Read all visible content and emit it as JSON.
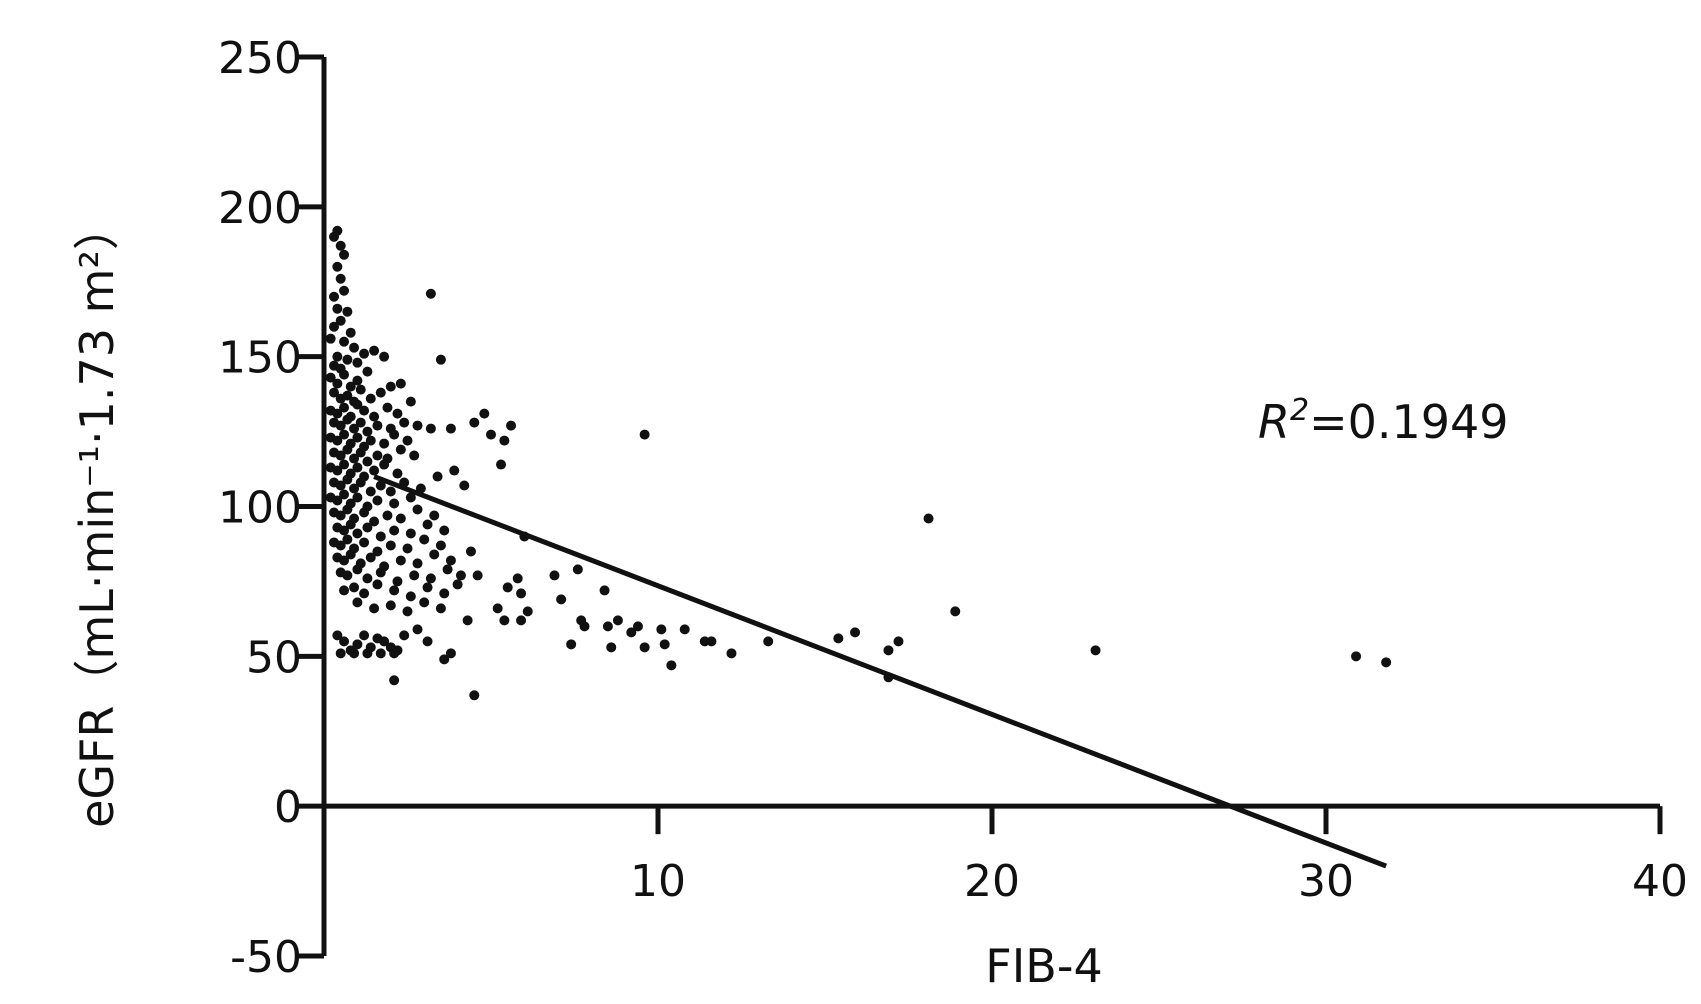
{
  "chart_data": {
    "type": "scatter",
    "title": "",
    "xlabel": "FIB-4",
    "ylabel": "eGFR（mL·min⁻¹·1.73 m²）",
    "xlim": [
      0,
      40
    ],
    "ylim": [
      -50,
      250
    ],
    "xticks": [
      "10",
      "20",
      "30",
      "40"
    ],
    "yticks": [
      "-50",
      "0",
      "50",
      "100",
      "150",
      "200",
      "250"
    ],
    "annotation": {
      "r2_symbol": "R",
      "r2_power": "2",
      "r2_value": "=0.1949"
    },
    "regression": {
      "x": [
        1.5,
        31.8
      ],
      "y": [
        110,
        -20
      ]
    },
    "point_color": "#111111",
    "grid": false,
    "legend": "none",
    "series": [
      {
        "points": [
          [
            0.3,
            190
          ],
          [
            0.4,
            192
          ],
          [
            0.5,
            187
          ],
          [
            0.6,
            184
          ],
          [
            0.4,
            180
          ],
          [
            0.5,
            176
          ],
          [
            0.3,
            170
          ],
          [
            0.6,
            172
          ],
          [
            0.7,
            165
          ],
          [
            0.4,
            166
          ],
          [
            0.3,
            160
          ],
          [
            0.5,
            162
          ],
          [
            0.8,
            158
          ],
          [
            0.2,
            156
          ],
          [
            0.6,
            155
          ],
          [
            0.9,
            153
          ],
          [
            0.4,
            150
          ],
          [
            0.7,
            149
          ],
          [
            0.3,
            147
          ],
          [
            0.5,
            146
          ],
          [
            1.0,
            148
          ],
          [
            1.2,
            151
          ],
          [
            1.5,
            152
          ],
          [
            1.8,
            150
          ],
          [
            0.2,
            143
          ],
          [
            0.4,
            141
          ],
          [
            0.6,
            144
          ],
          [
            0.8,
            140
          ],
          [
            1.0,
            142
          ],
          [
            1.3,
            145
          ],
          [
            0.3,
            138
          ],
          [
            0.5,
            136
          ],
          [
            0.7,
            137
          ],
          [
            0.9,
            135
          ],
          [
            1.1,
            139
          ],
          [
            1.4,
            136
          ],
          [
            1.7,
            138
          ],
          [
            2.0,
            140
          ],
          [
            2.3,
            141
          ],
          [
            0.2,
            132
          ],
          [
            0.4,
            131
          ],
          [
            0.6,
            133
          ],
          [
            0.8,
            130
          ],
          [
            1.0,
            134
          ],
          [
            1.2,
            132
          ],
          [
            1.5,
            130
          ],
          [
            1.9,
            133
          ],
          [
            2.2,
            131
          ],
          [
            2.6,
            135
          ],
          [
            0.3,
            128
          ],
          [
            0.5,
            127
          ],
          [
            0.7,
            129
          ],
          [
            0.9,
            126
          ],
          [
            1.1,
            128
          ],
          [
            1.3,
            125
          ],
          [
            1.6,
            127
          ],
          [
            2.0,
            126
          ],
          [
            2.4,
            128
          ],
          [
            2.8,
            127
          ],
          [
            3.2,
            126
          ],
          [
            0.2,
            123
          ],
          [
            0.4,
            122
          ],
          [
            0.6,
            124
          ],
          [
            0.8,
            121
          ],
          [
            1.0,
            123
          ],
          [
            1.2,
            120
          ],
          [
            1.4,
            122
          ],
          [
            1.8,
            121
          ],
          [
            2.1,
            124
          ],
          [
            2.5,
            122
          ],
          [
            0.3,
            118
          ],
          [
            0.5,
            117
          ],
          [
            0.7,
            119
          ],
          [
            0.9,
            116
          ],
          [
            1.1,
            118
          ],
          [
            1.3,
            115
          ],
          [
            1.6,
            117
          ],
          [
            1.9,
            116
          ],
          [
            2.3,
            119
          ],
          [
            2.7,
            117
          ],
          [
            0.2,
            113
          ],
          [
            0.4,
            112
          ],
          [
            0.6,
            114
          ],
          [
            0.8,
            111
          ],
          [
            1.0,
            113
          ],
          [
            1.2,
            110
          ],
          [
            1.5,
            112
          ],
          [
            1.8,
            114
          ],
          [
            2.2,
            111
          ],
          [
            0.3,
            108
          ],
          [
            0.5,
            107
          ],
          [
            0.7,
            109
          ],
          [
            0.9,
            106
          ],
          [
            1.1,
            108
          ],
          [
            1.4,
            105
          ],
          [
            1.7,
            107
          ],
          [
            2.0,
            105
          ],
          [
            2.4,
            108
          ],
          [
            2.9,
            106
          ],
          [
            3.4,
            110
          ],
          [
            0.2,
            103
          ],
          [
            0.4,
            102
          ],
          [
            0.6,
            104
          ],
          [
            0.8,
            101
          ],
          [
            1.0,
            103
          ],
          [
            1.3,
            100
          ],
          [
            1.6,
            102
          ],
          [
            2.1,
            101
          ],
          [
            2.6,
            103
          ],
          [
            0.3,
            98
          ],
          [
            0.5,
            97
          ],
          [
            0.7,
            99
          ],
          [
            0.9,
            96
          ],
          [
            1.2,
            98
          ],
          [
            1.5,
            95
          ],
          [
            1.9,
            97
          ],
          [
            2.3,
            96
          ],
          [
            2.8,
            99
          ],
          [
            3.3,
            97
          ],
          [
            0.4,
            93
          ],
          [
            0.6,
            92
          ],
          [
            0.8,
            94
          ],
          [
            1.0,
            91
          ],
          [
            1.3,
            93
          ],
          [
            1.7,
            90
          ],
          [
            2.1,
            92
          ],
          [
            2.6,
            91
          ],
          [
            3.1,
            94
          ],
          [
            3.6,
            92
          ],
          [
            0.3,
            88
          ],
          [
            0.5,
            87
          ],
          [
            0.7,
            89
          ],
          [
            0.9,
            86
          ],
          [
            1.2,
            88
          ],
          [
            1.6,
            85
          ],
          [
            2.0,
            87
          ],
          [
            2.5,
            86
          ],
          [
            3.0,
            89
          ],
          [
            3.5,
            87
          ],
          [
            0.4,
            83
          ],
          [
            0.6,
            82
          ],
          [
            0.8,
            84
          ],
          [
            1.1,
            81
          ],
          [
            1.4,
            83
          ],
          [
            1.8,
            80
          ],
          [
            2.3,
            82
          ],
          [
            2.8,
            81
          ],
          [
            3.3,
            84
          ],
          [
            3.8,
            82
          ],
          [
            0.5,
            78
          ],
          [
            0.7,
            77
          ],
          [
            1.0,
            79
          ],
          [
            1.3,
            76
          ],
          [
            1.7,
            78
          ],
          [
            2.2,
            75
          ],
          [
            2.7,
            77
          ],
          [
            3.2,
            76
          ],
          [
            3.7,
            79
          ],
          [
            4.1,
            77
          ],
          [
            0.6,
            72
          ],
          [
            0.9,
            73
          ],
          [
            1.2,
            71
          ],
          [
            1.6,
            74
          ],
          [
            2.1,
            72
          ],
          [
            2.6,
            70
          ],
          [
            3.1,
            73
          ],
          [
            3.6,
            71
          ],
          [
            4.0,
            74
          ],
          [
            1.0,
            68
          ],
          [
            1.5,
            66
          ],
          [
            2.0,
            67
          ],
          [
            2.5,
            65
          ],
          [
            3.0,
            68
          ],
          [
            3.5,
            66
          ],
          [
            3.2,
            171
          ],
          [
            3.5,
            149
          ],
          [
            3.8,
            126
          ],
          [
            3.9,
            112
          ],
          [
            4.2,
            107
          ],
          [
            4.5,
            128
          ],
          [
            4.8,
            131
          ],
          [
            5.0,
            124
          ],
          [
            5.4,
            122
          ],
          [
            5.6,
            127
          ],
          [
            5.3,
            114
          ],
          [
            4.4,
            85
          ],
          [
            4.6,
            77
          ],
          [
            4.3,
            62
          ],
          [
            5.2,
            66
          ],
          [
            5.5,
            73
          ],
          [
            5.8,
            76
          ],
          [
            5.9,
            71
          ],
          [
            6.1,
            65
          ],
          [
            5.9,
            62
          ],
          [
            6.0,
            90
          ],
          [
            5.4,
            62
          ],
          [
            0.4,
            57
          ],
          [
            0.6,
            55
          ],
          [
            0.8,
            52
          ],
          [
            1.0,
            54
          ],
          [
            1.2,
            57
          ],
          [
            1.4,
            53
          ],
          [
            1.6,
            56
          ],
          [
            1.8,
            55
          ],
          [
            2.0,
            53
          ],
          [
            2.2,
            52
          ],
          [
            2.4,
            57
          ],
          [
            0.5,
            51
          ],
          [
            0.9,
            51
          ],
          [
            1.3,
            51
          ],
          [
            1.7,
            51
          ],
          [
            2.1,
            51
          ],
          [
            2.8,
            59
          ],
          [
            3.1,
            55
          ],
          [
            3.6,
            49
          ],
          [
            3.8,
            51
          ],
          [
            2.1,
            42
          ],
          [
            4.5,
            37
          ],
          [
            6.9,
            77
          ],
          [
            7.1,
            69
          ],
          [
            7.4,
            54
          ],
          [
            7.6,
            79
          ],
          [
            7.7,
            62
          ],
          [
            7.8,
            60
          ],
          [
            8.4,
            72
          ],
          [
            8.5,
            60
          ],
          [
            8.6,
            53
          ],
          [
            8.8,
            62
          ],
          [
            9.2,
            58
          ],
          [
            9.4,
            60
          ],
          [
            9.6,
            124
          ],
          [
            9.6,
            53
          ],
          [
            10.1,
            59
          ],
          [
            10.2,
            54
          ],
          [
            10.4,
            47
          ],
          [
            10.8,
            59
          ],
          [
            11.4,
            55
          ],
          [
            11.6,
            55
          ],
          [
            12.2,
            51
          ],
          [
            13.3,
            55
          ],
          [
            15.4,
            56
          ],
          [
            15.9,
            58
          ],
          [
            16.9,
            52
          ],
          [
            16.9,
            43
          ],
          [
            17.2,
            55
          ],
          [
            18.1,
            96
          ],
          [
            18.9,
            65
          ],
          [
            23.1,
            52
          ],
          [
            30.9,
            50
          ],
          [
            31.8,
            48
          ]
        ]
      }
    ]
  }
}
